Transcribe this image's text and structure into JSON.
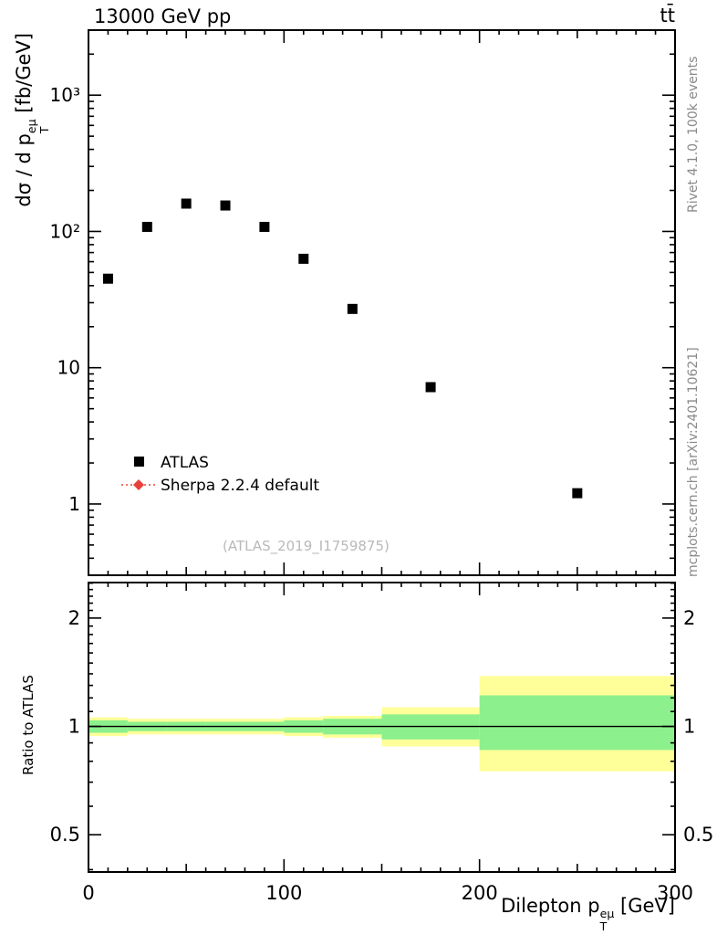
{
  "header": {
    "left_title": "13000 GeV pp",
    "right_title": "tt̄"
  },
  "watermark": "(ATLAS_2019_I1759875)",
  "side_notes": {
    "top_right": "Rivet 4.1.0, 100k events",
    "bottom_right": "mcplots.cern.ch [arXiv:2401.10621]"
  },
  "legend": [
    {
      "label": "ATLAS",
      "marker": "square",
      "color": "#000000"
    },
    {
      "label": "Sherpa 2.2.4 default",
      "marker": "diamond",
      "color": "#e8403a",
      "line": "dotted"
    }
  ],
  "axes": {
    "xlabel": {
      "prefix": "Dilepton p",
      "sub": "T",
      "sup": "eμ",
      "suffix": " [GeV]"
    },
    "ylabel": {
      "prefix": "dσ / d p",
      "sub": "T",
      "sup": "eμ",
      "suffix": " [fb/GeV]"
    },
    "ratio_label": "Ratio to ATLAS"
  },
  "chart_data": {
    "type": "scatter",
    "title": "13000 GeV pp",
    "xlabel": "Dilepton pT^{eμ} [GeV]",
    "ylabel": "dσ / d pT^{eμ} [fb/GeV]",
    "xlim": [
      0,
      300
    ],
    "x_major_ticks": [
      0,
      100,
      200,
      300
    ],
    "x_tick_labels": [
      "0",
      "100",
      "200",
      "300"
    ],
    "x_minor_step": 10,
    "grid": false,
    "legend_position": "lower-left-inside",
    "main": {
      "yscale": "log",
      "ylim": [
        0.3,
        3000
      ],
      "y_major_ticks": [
        1,
        10,
        100,
        1000
      ],
      "y_tick_labels": [
        "1",
        "10",
        "10²",
        "10³"
      ],
      "series": [
        {
          "name": "ATLAS",
          "marker": "square",
          "color": "#000000",
          "x": [
            10,
            30,
            50,
            70,
            90,
            110,
            135,
            175,
            250
          ],
          "y": [
            45,
            108,
            160,
            155,
            108,
            63,
            27,
            7.2,
            1.2
          ]
        }
      ]
    },
    "ratio": {
      "yscale": "log",
      "ylim": [
        0.394,
        2.51
      ],
      "y_ticks": [
        0.5,
        1,
        2
      ],
      "y_tick_labels": [
        "0.5",
        "1",
        "2"
      ],
      "minor_ticks": [
        0.4,
        0.6,
        0.7,
        0.8,
        0.9,
        1.1,
        1.2,
        1.3,
        1.4,
        1.5,
        1.6,
        1.7,
        1.8,
        1.9,
        2.1,
        2.2,
        2.3,
        2.4,
        2.5
      ],
      "reference_line": 1,
      "band_colors": {
        "outer": "#ffff99",
        "inner": "#8cf08c"
      },
      "bands": {
        "bin_edges": [
          0,
          20,
          40,
          60,
          80,
          100,
          120,
          150,
          200,
          300
        ],
        "yellow_lo": [
          0.94,
          0.95,
          0.95,
          0.95,
          0.95,
          0.94,
          0.93,
          0.88,
          0.75
        ],
        "yellow_hi": [
          1.06,
          1.05,
          1.05,
          1.05,
          1.05,
          1.06,
          1.07,
          1.13,
          1.38
        ],
        "green_lo": [
          0.96,
          0.97,
          0.97,
          0.97,
          0.97,
          0.96,
          0.95,
          0.92,
          0.86
        ],
        "green_hi": [
          1.04,
          1.03,
          1.03,
          1.03,
          1.03,
          1.04,
          1.05,
          1.08,
          1.22
        ]
      }
    }
  }
}
